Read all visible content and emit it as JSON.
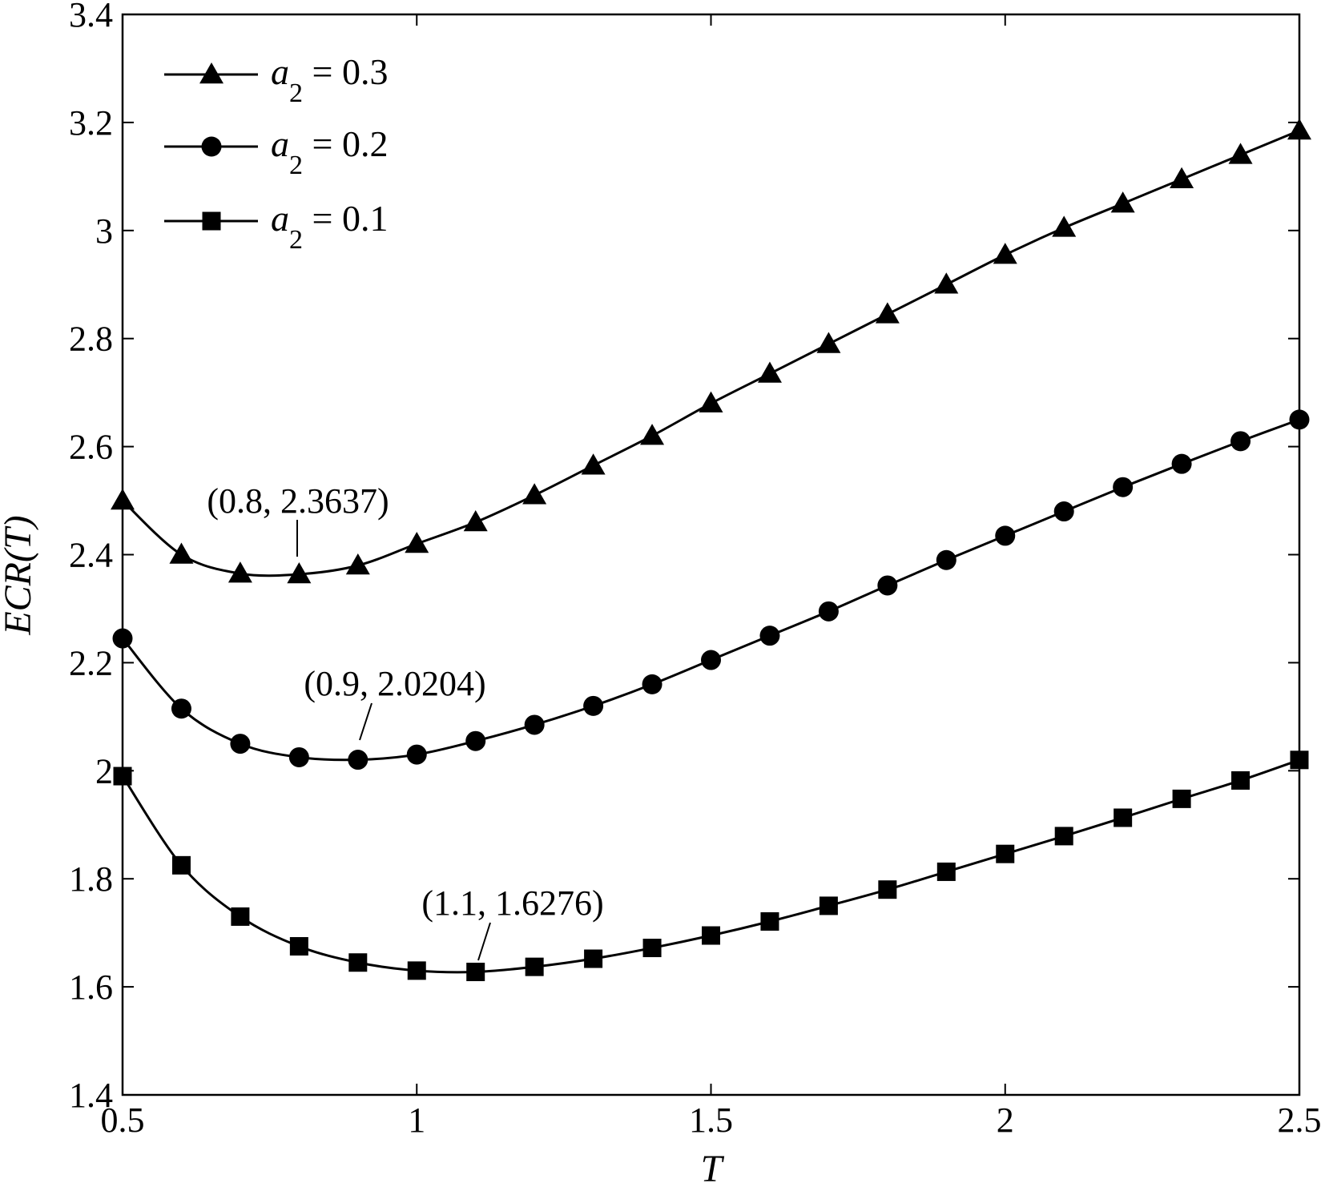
{
  "chart_data": {
    "type": "line",
    "xlabel": "T",
    "ylabel": "ECR(T)",
    "xlim": [
      0.5,
      2.5
    ],
    "ylim": [
      1.4,
      3.4
    ],
    "xticks": [
      0.5,
      1,
      1.5,
      2,
      2.5
    ],
    "xtick_labels": [
      "0.5",
      "1",
      "1.5",
      "2",
      "2.5"
    ],
    "yticks": [
      1.4,
      1.6,
      1.8,
      2,
      2.2,
      2.4,
      2.6,
      2.8,
      3,
      3.2,
      3.4
    ],
    "ytick_labels": [
      "1.4",
      "1.6",
      "1.8",
      "2",
      "2.2",
      "2.4",
      "2.6",
      "2.8",
      "3",
      "3.2",
      "3.4"
    ],
    "grid": false,
    "legend_position": "top-left",
    "x": [
      0.5,
      0.6,
      0.7,
      0.8,
      0.9,
      1.0,
      1.1,
      1.2,
      1.3,
      1.4,
      1.5,
      1.6,
      1.7,
      1.8,
      1.9,
      2.0,
      2.1,
      2.2,
      2.3,
      2.4,
      2.5
    ],
    "series": [
      {
        "name_main": "a",
        "name_sub": "2",
        "name_rest": " = 0.3",
        "marker": "triangle",
        "color": "#000000",
        "values": [
          2.5,
          2.4,
          2.365,
          2.3637,
          2.38,
          2.42,
          2.46,
          2.51,
          2.565,
          2.62,
          2.68,
          2.735,
          2.79,
          2.845,
          2.9,
          2.955,
          3.005,
          3.05,
          3.095,
          3.14,
          3.185
        ]
      },
      {
        "name_main": "a",
        "name_sub": "2",
        "name_rest": " = 0.2",
        "marker": "circle",
        "color": "#000000",
        "values": [
          2.245,
          2.115,
          2.05,
          2.025,
          2.0204,
          2.03,
          2.055,
          2.085,
          2.12,
          2.16,
          2.205,
          2.25,
          2.295,
          2.343,
          2.39,
          2.435,
          2.48,
          2.525,
          2.568,
          2.61,
          2.65
        ]
      },
      {
        "name_main": "a",
        "name_sub": "2",
        "name_rest": " = 0.1",
        "marker": "square",
        "color": "#000000",
        "values": [
          1.99,
          1.825,
          1.73,
          1.675,
          1.645,
          1.63,
          1.6276,
          1.637,
          1.652,
          1.672,
          1.695,
          1.721,
          1.75,
          1.78,
          1.813,
          1.846,
          1.879,
          1.913,
          1.948,
          1.982,
          2.02
        ]
      }
    ],
    "annotations": [
      {
        "text": "(0.8, 2.3637)",
        "x": 0.8,
        "y": 2.3637
      },
      {
        "text": "(0.9, 2.0204)",
        "x": 0.9,
        "y": 2.0204
      },
      {
        "text": "(1.1, 1.6276)",
        "x": 1.1,
        "y": 1.6276
      }
    ]
  }
}
